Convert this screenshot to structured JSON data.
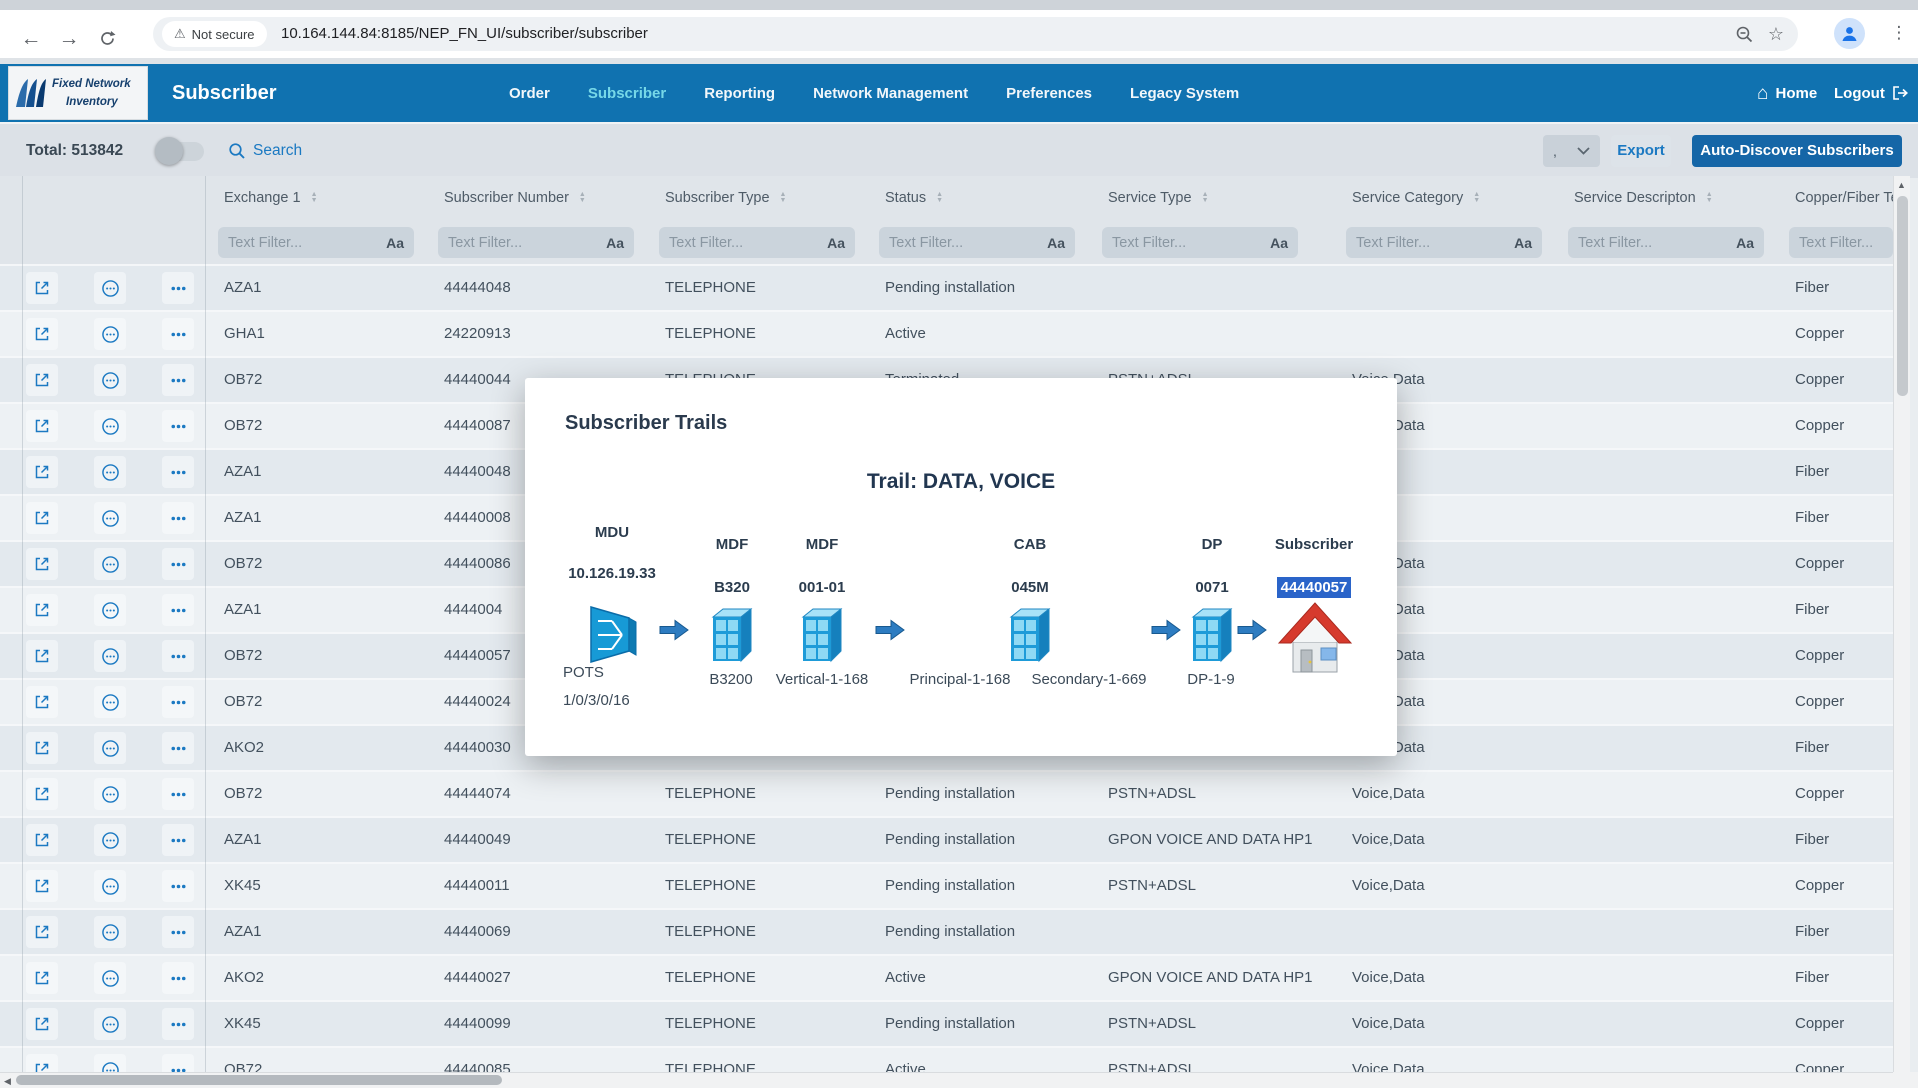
{
  "browser": {
    "security_label": "Not secure",
    "url": "10.164.144.84:8185/NEP_FN_UI/subscriber/subscriber"
  },
  "header": {
    "logo_line1": "Fixed Network",
    "logo_line2": "Inventory",
    "app_title": "Subscriber",
    "nav": [
      {
        "label": "Order",
        "active": false
      },
      {
        "label": "Subscriber",
        "active": true
      },
      {
        "label": "Reporting",
        "active": false
      },
      {
        "label": "Network Management",
        "active": false
      },
      {
        "label": "Preferences",
        "active": false
      },
      {
        "label": "Legacy System",
        "active": false
      }
    ],
    "home_label": "Home",
    "logout_label": "Logout"
  },
  "toolbar": {
    "total_label": "Total: 513842",
    "search_label": "Search",
    "page_size_value": ",",
    "export_label": "Export",
    "autodiscover_label": "Auto-Discover Subscribers"
  },
  "table": {
    "columns": [
      "Exchange 1",
      "Subscriber Number",
      "Subscriber Type",
      "Status",
      "Service Type",
      "Service Category",
      "Service Descripton",
      "Copper/Fiber Te"
    ],
    "filter_placeholder": "Text Filter...",
    "filter_case_label": "Aa",
    "rows": [
      {
        "exchange": "AZA1",
        "number": "44444048",
        "type": "TELEPHONE",
        "status": "Pending installation",
        "service_type": "",
        "category": "",
        "description": "",
        "copper_fiber": "Fiber"
      },
      {
        "exchange": "GHA1",
        "number": "24220913",
        "type": "TELEPHONE",
        "status": "Active",
        "service_type": "",
        "category": "",
        "description": "",
        "copper_fiber": "Copper"
      },
      {
        "exchange": "OB72",
        "number": "44440044",
        "type": "TELEPHONE",
        "status": "Terminated",
        "service_type": "PSTN+ADSL",
        "category": "Voice,Data",
        "description": "",
        "copper_fiber": "Copper"
      },
      {
        "exchange": "OB72",
        "number": "44440087",
        "type": "",
        "status": "",
        "service_type": "",
        "category": "Voice,Data",
        "description": "",
        "copper_fiber": "Copper"
      },
      {
        "exchange": "AZA1",
        "number": "44440048",
        "type": "",
        "status": "",
        "service_type": "",
        "category": "",
        "description": "",
        "copper_fiber": "Fiber"
      },
      {
        "exchange": "AZA1",
        "number": "44440008",
        "type": "",
        "status": "",
        "service_type": "",
        "category": "",
        "description": "",
        "copper_fiber": "Fiber"
      },
      {
        "exchange": "OB72",
        "number": "44440086",
        "type": "",
        "status": "",
        "service_type": "",
        "category": "Voice,Data",
        "description": "",
        "copper_fiber": "Copper"
      },
      {
        "exchange": "AZA1",
        "number": "4444004",
        "type": "",
        "status": "",
        "service_type": "",
        "category": "Voice,Data",
        "description": "",
        "copper_fiber": "Fiber"
      },
      {
        "exchange": "OB72",
        "number": "44440057",
        "type": "",
        "status": "",
        "service_type": "",
        "category": "Voice,Data",
        "description": "",
        "copper_fiber": "Copper"
      },
      {
        "exchange": "OB72",
        "number": "44440024",
        "type": "",
        "status": "",
        "service_type": "",
        "category": "Voice,Data",
        "description": "",
        "copper_fiber": "Copper"
      },
      {
        "exchange": "AKO2",
        "number": "44440030",
        "type": "",
        "status": "",
        "service_type": "",
        "category": "Voice,Data",
        "description": "",
        "copper_fiber": "Fiber"
      },
      {
        "exchange": "OB72",
        "number": "44444074",
        "type": "TELEPHONE",
        "status": "Pending installation",
        "service_type": "PSTN+ADSL",
        "category": "Voice,Data",
        "description": "",
        "copper_fiber": "Copper"
      },
      {
        "exchange": "AZA1",
        "number": "44440049",
        "type": "TELEPHONE",
        "status": "Pending installation",
        "service_type": "GPON VOICE AND DATA HP1",
        "category": "Voice,Data",
        "description": "",
        "copper_fiber": "Fiber"
      },
      {
        "exchange": "XK45",
        "number": "44440011",
        "type": "TELEPHONE",
        "status": "Pending installation",
        "service_type": "PSTN+ADSL",
        "category": "Voice,Data",
        "description": "",
        "copper_fiber": "Copper"
      },
      {
        "exchange": "AZA1",
        "number": "44440069",
        "type": "TELEPHONE",
        "status": "Pending installation",
        "service_type": "",
        "category": "",
        "description": "",
        "copper_fiber": "Fiber"
      },
      {
        "exchange": "AKO2",
        "number": "44440027",
        "type": "TELEPHONE",
        "status": "Active",
        "service_type": "GPON VOICE AND DATA HP1",
        "category": "Voice,Data",
        "description": "",
        "copper_fiber": "Fiber"
      },
      {
        "exchange": "XK45",
        "number": "44440099",
        "type": "TELEPHONE",
        "status": "Pending installation",
        "service_type": "PSTN+ADSL",
        "category": "Voice,Data",
        "description": "",
        "copper_fiber": "Copper"
      },
      {
        "exchange": "OB72",
        "number": "44440085",
        "type": "TELEPHONE",
        "status": "Active",
        "service_type": "PSTN+ADSL",
        "category": "Voice,Data",
        "description": "",
        "copper_fiber": "Copper"
      }
    ]
  },
  "modal": {
    "title": "Subscriber Trails",
    "trail_title": "Trail: DATA, VOICE",
    "nodes": [
      {
        "kind": "MDU",
        "value": "10.126.19.33",
        "icon": "splitter",
        "labels": [
          "POTS",
          "1/0/3/0/16"
        ],
        "highlighted": false
      },
      {
        "kind": "MDF",
        "value": "B320",
        "icon": "cabinet",
        "labels": [
          "B3200"
        ],
        "highlighted": false
      },
      {
        "kind": "MDF",
        "value": "001-01",
        "icon": "cabinet",
        "labels": [
          "Vertical-1-168"
        ],
        "highlighted": false
      },
      {
        "kind": "CAB",
        "value": "045M",
        "icon": "cabinet",
        "labels": [
          "Principal-1-168",
          "Secondary-1-669"
        ],
        "highlighted": false
      },
      {
        "kind": "DP",
        "value": "0071",
        "icon": "cabinet",
        "labels": [
          "DP-1-9"
        ],
        "highlighted": false
      },
      {
        "kind": "Subscriber",
        "value": "44440057",
        "icon": "house",
        "labels": [],
        "highlighted": true
      }
    ]
  },
  "colors": {
    "header_blue": "#1072b0",
    "active_nav_cyan": "#76d8e8",
    "accent_blue": "#1b79c2",
    "primary_button_blue": "#1566a7",
    "highlight_selection_blue": "#2a64c9",
    "row_odd": "#e3e9ee",
    "row_even": "#edf1f4"
  }
}
